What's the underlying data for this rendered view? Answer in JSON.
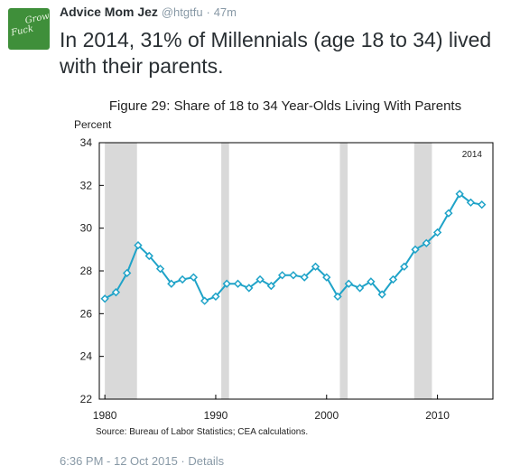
{
  "tweet": {
    "author_name": "Advice Mom Jez",
    "handle": "@htgtfu",
    "separator": "·",
    "time_ago": "47m",
    "text": "In 2014, 31% of Millennials (age 18 to 34) lived with their parents.",
    "avatar_text": [
      "Grow",
      "Fuck"
    ],
    "avatar_color": "#3f8f3a",
    "timestamp": "6:36 PM - 12 Oct 2015",
    "details_label": "Details"
  },
  "chart_data": {
    "type": "line",
    "title": "Figure 29: Share of 18 to 34 Year-Olds Living With Parents",
    "ylabel": "Percent",
    "xlabel": "",
    "source": "Source: Bureau of Labor Statistics; CEA calculations.",
    "annotation": "2014",
    "xlim": [
      1979.5,
      2015
    ],
    "ylim": [
      22,
      34
    ],
    "x_ticks": [
      1980,
      1990,
      2000,
      2010
    ],
    "y_ticks": [
      22,
      24,
      26,
      28,
      30,
      32,
      34
    ],
    "recession_shading": [
      [
        1980.0,
        1982.9
      ],
      [
        1990.5,
        1991.2
      ],
      [
        2001.2,
        2001.9
      ],
      [
        2007.9,
        2009.5
      ]
    ],
    "line_color": "#1fa3c8",
    "shade_color": "#d9d9d9",
    "series": [
      {
        "x": [
          1980,
          1981,
          1982,
          1983,
          1984,
          1985,
          1986,
          1987,
          1988,
          1989,
          1990,
          1991,
          1992,
          1993,
          1994,
          1995,
          1996,
          1997,
          1998,
          1999,
          2000,
          2001,
          2002,
          2003,
          2004,
          2005,
          2006,
          2007,
          2008,
          2009,
          2010,
          2011,
          2012,
          2013,
          2014
        ],
        "values": [
          26.7,
          27.0,
          27.9,
          29.2,
          28.7,
          28.1,
          27.4,
          27.6,
          27.7,
          26.6,
          26.8,
          27.4,
          27.4,
          27.2,
          27.6,
          27.3,
          27.8,
          27.8,
          27.7,
          28.2,
          27.7,
          26.8,
          27.4,
          27.2,
          27.5,
          26.9,
          27.6,
          28.2,
          29.0,
          29.3,
          29.8,
          30.7,
          31.6,
          31.2,
          31.1
        ]
      }
    ]
  }
}
